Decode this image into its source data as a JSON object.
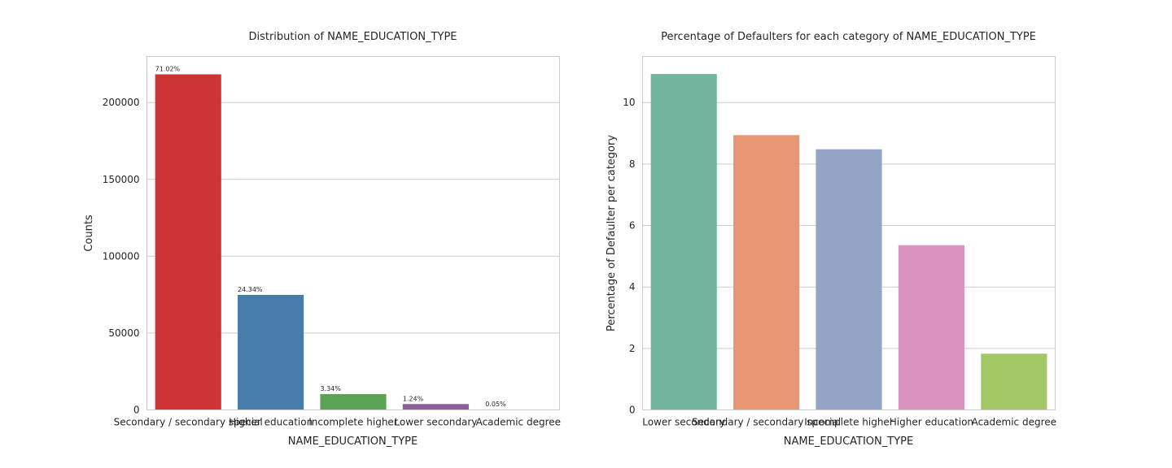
{
  "chart_data": [
    {
      "type": "bar",
      "title": "Distribution of NAME_EDUCATION_TYPE",
      "xlabel": "NAME_EDUCATION_TYPE",
      "ylabel": "Counts",
      "categories": [
        "Secondary / secondary special",
        "Higher education",
        "Incomplete higher",
        "Lower secondary",
        "Academic degree"
      ],
      "values": [
        218391,
        74863,
        10277,
        3816,
        164
      ],
      "bar_labels": [
        "71.02%",
        "24.34%",
        "3.34%",
        "1.24%",
        "0.05%"
      ],
      "colors": [
        "#cf3434",
        "#477cab",
        "#5aa354",
        "#8e5b9c",
        "#e8822c"
      ],
      "ylim": [
        0,
        230000
      ],
      "yticks": [
        0,
        50000,
        100000,
        150000,
        200000
      ],
      "ytick_labels": [
        "0",
        "50000",
        "100000",
        "150000",
        "200000"
      ],
      "grid": "horizontal"
    },
    {
      "type": "bar",
      "title": "Percentage of Defaulters for each category of NAME_EDUCATION_TYPE",
      "xlabel": "NAME_EDUCATION_TYPE",
      "ylabel": "Percentage of Defaulter per category",
      "categories": [
        "Lower secondary",
        "Secondary / secondary special",
        "Incomplete higher",
        "Higher education",
        "Academic degree"
      ],
      "values": [
        10.93,
        8.94,
        8.48,
        5.36,
        1.83
      ],
      "colors": [
        "#72b59f",
        "#e79673",
        "#94a4c4",
        "#db94c1",
        "#a2c865"
      ],
      "ylim": [
        0,
        11.5
      ],
      "yticks": [
        0,
        2,
        4,
        6,
        8,
        10
      ],
      "ytick_labels": [
        "0",
        "2",
        "4",
        "6",
        "8",
        "10"
      ],
      "grid": "horizontal"
    }
  ]
}
